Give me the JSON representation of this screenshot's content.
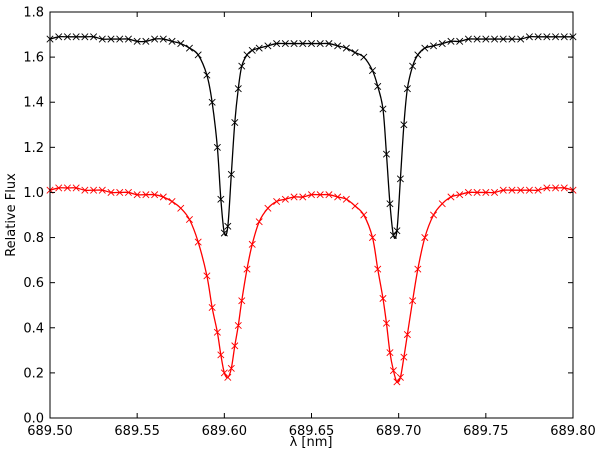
{
  "chart_data": {
    "type": "line",
    "title": "",
    "xlabel": "λ  [nm]",
    "ylabel": "Relative Flux",
    "xlim": [
      689.5,
      689.8
    ],
    "ylim": [
      0.0,
      1.8
    ],
    "grid": false,
    "x_ticks": [
      "689.50",
      "689.55",
      "689.60",
      "689.65",
      "689.70",
      "689.75",
      "689.80"
    ],
    "y_ticks": [
      "0.0",
      "0.2",
      "0.4",
      "0.6",
      "0.8",
      "1.0",
      "1.2",
      "1.4",
      "1.6",
      "1.8"
    ],
    "series": [
      {
        "color": "#000000",
        "marker": "x",
        "x": [
          689.5,
          689.505,
          689.51,
          689.515,
          689.52,
          689.525,
          689.53,
          689.535,
          689.54,
          689.545,
          689.55,
          689.555,
          689.56,
          689.565,
          689.57,
          689.575,
          689.58,
          689.585,
          689.59,
          689.593,
          689.596,
          689.598,
          689.6,
          689.602,
          689.604,
          689.606,
          689.608,
          689.61,
          689.613,
          689.616,
          689.62,
          689.625,
          689.63,
          689.635,
          689.64,
          689.645,
          689.65,
          689.655,
          689.66,
          689.665,
          689.67,
          689.675,
          689.68,
          689.685,
          689.688,
          689.691,
          689.693,
          689.695,
          689.697,
          689.699,
          689.701,
          689.703,
          689.705,
          689.708,
          689.711,
          689.715,
          689.72,
          689.725,
          689.73,
          689.735,
          689.74,
          689.745,
          689.75,
          689.755,
          689.76,
          689.765,
          689.77,
          689.775,
          689.78,
          689.785,
          689.79,
          689.795,
          689.8
        ],
        "y": [
          1.68,
          1.69,
          1.69,
          1.69,
          1.69,
          1.69,
          1.68,
          1.68,
          1.68,
          1.68,
          1.67,
          1.67,
          1.68,
          1.68,
          1.67,
          1.66,
          1.64,
          1.61,
          1.52,
          1.4,
          1.2,
          0.97,
          0.82,
          0.85,
          1.08,
          1.31,
          1.46,
          1.56,
          1.61,
          1.63,
          1.64,
          1.65,
          1.66,
          1.66,
          1.66,
          1.66,
          1.66,
          1.66,
          1.66,
          1.65,
          1.64,
          1.62,
          1.6,
          1.54,
          1.47,
          1.37,
          1.17,
          0.95,
          0.81,
          0.83,
          1.06,
          1.3,
          1.46,
          1.56,
          1.61,
          1.64,
          1.65,
          1.66,
          1.67,
          1.67,
          1.68,
          1.68,
          1.68,
          1.68,
          1.68,
          1.68,
          1.68,
          1.69,
          1.69,
          1.69,
          1.69,
          1.69,
          1.69
        ]
      },
      {
        "color": "#ff0000",
        "marker": "x",
        "x": [
          689.5,
          689.505,
          689.51,
          689.515,
          689.52,
          689.525,
          689.53,
          689.535,
          689.54,
          689.545,
          689.55,
          689.555,
          689.56,
          689.565,
          689.57,
          689.575,
          689.58,
          689.585,
          689.59,
          689.593,
          689.596,
          689.598,
          689.6,
          689.602,
          689.604,
          689.606,
          689.608,
          689.61,
          689.613,
          689.616,
          689.62,
          689.625,
          689.63,
          689.635,
          689.64,
          689.645,
          689.65,
          689.655,
          689.66,
          689.665,
          689.67,
          689.675,
          689.68,
          689.685,
          689.688,
          689.691,
          689.693,
          689.695,
          689.697,
          689.699,
          689.701,
          689.703,
          689.705,
          689.708,
          689.711,
          689.715,
          689.72,
          689.725,
          689.73,
          689.735,
          689.74,
          689.745,
          689.75,
          689.755,
          689.76,
          689.765,
          689.77,
          689.775,
          689.78,
          689.785,
          689.79,
          689.795,
          689.8
        ],
        "y": [
          1.01,
          1.02,
          1.02,
          1.02,
          1.01,
          1.01,
          1.01,
          1.0,
          1.0,
          1.0,
          0.99,
          0.99,
          0.99,
          0.98,
          0.96,
          0.93,
          0.88,
          0.78,
          0.63,
          0.49,
          0.38,
          0.28,
          0.2,
          0.18,
          0.22,
          0.32,
          0.41,
          0.52,
          0.66,
          0.77,
          0.87,
          0.93,
          0.96,
          0.97,
          0.98,
          0.98,
          0.99,
          0.99,
          0.99,
          0.98,
          0.97,
          0.94,
          0.9,
          0.8,
          0.66,
          0.53,
          0.42,
          0.29,
          0.21,
          0.16,
          0.18,
          0.27,
          0.37,
          0.52,
          0.66,
          0.8,
          0.9,
          0.95,
          0.98,
          0.99,
          1.0,
          1.0,
          1.0,
          1.0,
          1.01,
          1.01,
          1.01,
          1.01,
          1.01,
          1.02,
          1.02,
          1.02,
          1.01
        ]
      }
    ]
  }
}
